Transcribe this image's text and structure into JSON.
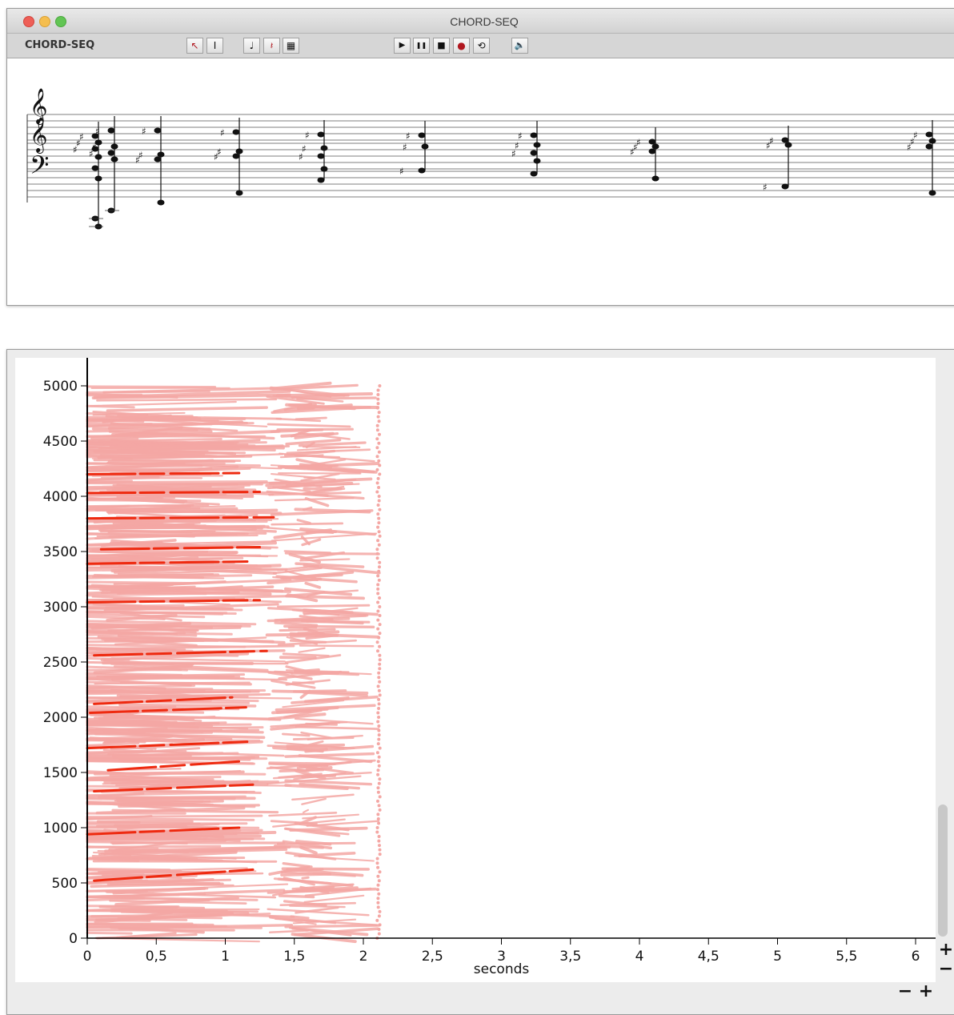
{
  "window": {
    "title": "CHORD-SEQ",
    "toolbar_label": "CHORD-SEQ",
    "tools": [
      {
        "name": "select-arrow-icon",
        "glyph": "↖"
      },
      {
        "name": "text-cursor-icon",
        "glyph": "I"
      },
      {
        "name": "quarter-note-icon",
        "glyph": "♩"
      },
      {
        "name": "rest-icon",
        "glyph": "𝄽"
      },
      {
        "name": "score-grid-icon",
        "glyph": "▦"
      }
    ],
    "transport": [
      {
        "name": "play-icon",
        "glyph": "▶"
      },
      {
        "name": "pause-icon",
        "glyph": "❚❚"
      },
      {
        "name": "stop-icon",
        "glyph": "■"
      },
      {
        "name": "record-icon",
        "glyph": "●"
      },
      {
        "name": "loop-icon",
        "glyph": "⟲"
      },
      {
        "name": "speaker-icon",
        "glyph": "🔈"
      }
    ]
  },
  "plot": {
    "xlabel": "seconds",
    "x_ticks": [
      "0",
      "0,5",
      "1",
      "1,5",
      "2",
      "2,5",
      "3",
      "3,5",
      "4",
      "4,5",
      "5",
      "5,5",
      "6"
    ],
    "y_ticks": [
      "0",
      "500",
      "1000",
      "1500",
      "2000",
      "2500",
      "3000",
      "3500",
      "4000",
      "4500",
      "5000"
    ],
    "colors": {
      "partial_light": "#f4a7a4",
      "partial_strong": "#ee2a10",
      "axis": "#000000"
    }
  },
  "chart_data": {
    "type": "line",
    "xlabel": "seconds",
    "ylabel": "",
    "xlim": [
      0,
      6.2
    ],
    "ylim": [
      0,
      5100
    ],
    "x_ticks": [
      0,
      0.5,
      1,
      1.5,
      2,
      2.5,
      3,
      3.5,
      4,
      4.5,
      5,
      5.5,
      6
    ],
    "y_ticks": [
      0,
      500,
      1000,
      1500,
      2000,
      2500,
      3000,
      3500,
      4000,
      4500,
      5000
    ],
    "strong_partials": [
      {
        "x": [
          0.0,
          1.1
        ],
        "y": [
          4200,
          4210
        ]
      },
      {
        "x": [
          0.0,
          1.25
        ],
        "y": [
          4030,
          4040
        ]
      },
      {
        "x": [
          0.0,
          1.35
        ],
        "y": [
          3800,
          3810
        ]
      },
      {
        "x": [
          0.1,
          1.25
        ],
        "y": [
          3520,
          3540
        ]
      },
      {
        "x": [
          0.0,
          1.2
        ],
        "y": [
          3390,
          3410
        ]
      },
      {
        "x": [
          0.0,
          1.25
        ],
        "y": [
          3040,
          3060
        ]
      },
      {
        "x": [
          0.05,
          1.3
        ],
        "y": [
          2560,
          2600
        ]
      },
      {
        "x": [
          0.05,
          1.05
        ],
        "y": [
          2120,
          2180
        ]
      },
      {
        "x": [
          0.02,
          1.15
        ],
        "y": [
          2040,
          2090
        ]
      },
      {
        "x": [
          0.0,
          1.2
        ],
        "y": [
          1720,
          1780
        ]
      },
      {
        "x": [
          0.15,
          1.1
        ],
        "y": [
          1520,
          1600
        ]
      },
      {
        "x": [
          0.05,
          1.2
        ],
        "y": [
          1330,
          1390
        ]
      },
      {
        "x": [
          0.0,
          1.1
        ],
        "y": [
          940,
          1000
        ]
      },
      {
        "x": [
          0.05,
          1.2
        ],
        "y": [
          520,
          620
        ]
      }
    ],
    "light_partials_region": {
      "x": [
        0.0,
        2.12
      ],
      "y": [
        0,
        5000
      ]
    }
  }
}
